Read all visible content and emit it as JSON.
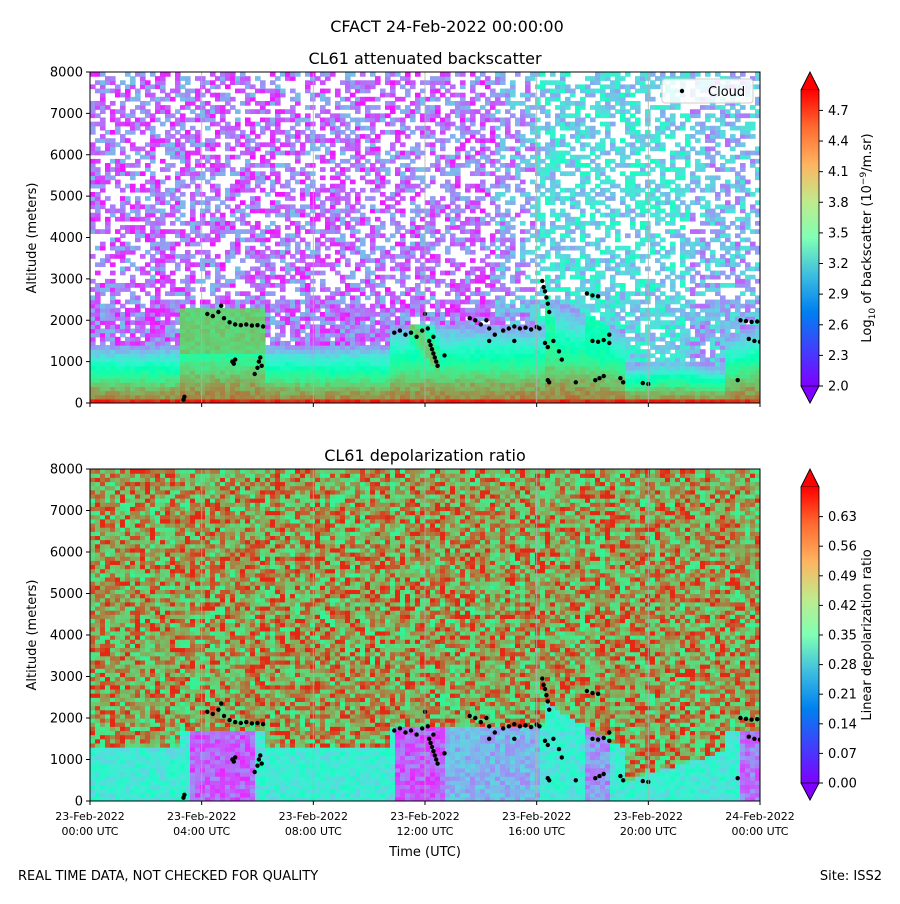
{
  "suptitle": "CFACT 24-Feb-2022 00:00:00",
  "footer_left": "REAL TIME DATA, NOT CHECKED FOR QUALITY",
  "footer_right": "Site: ISS2",
  "chart_data": [
    {
      "type": "heatmap",
      "title": "CL61 attenuated backscatter",
      "xlabel": "",
      "ylabel": "Altitude (meters)",
      "ylim": [
        0,
        8000
      ],
      "yticks": [
        0,
        1000,
        2000,
        3000,
        4000,
        5000,
        6000,
        7000,
        8000
      ],
      "xlim_hours": [
        0,
        24
      ],
      "xtick_hours": [
        0,
        4,
        8,
        12,
        16,
        20,
        24
      ],
      "vertical_grid": true,
      "colormap": "rainbow",
      "colorbar": {
        "label_main": "Log",
        "label_sub": "10",
        "label_rest": " of backscatter (10",
        "label_sup": "−9",
        "label_end": "/m.sr)",
        "vmin": 2.0,
        "vmax": 4.9,
        "ticks": [
          "2.0",
          "2.3",
          "2.6",
          "2.9",
          "3.2",
          "3.5",
          "3.8",
          "4.1",
          "4.4",
          "4.7"
        ],
        "extend": "both"
      },
      "legend": {
        "label": "Cloud",
        "placement": "upper right",
        "marker_color": "#000000"
      }
    },
    {
      "type": "heatmap",
      "title": "CL61 depolarization ratio",
      "xlabel": "Time (UTC)",
      "ylabel": "Altitude (meters)",
      "ylim": [
        0,
        8000
      ],
      "yticks": [
        0,
        1000,
        2000,
        3000,
        4000,
        5000,
        6000,
        7000,
        8000
      ],
      "xlim_hours": [
        0,
        24
      ],
      "xtick_hours": [
        0,
        4,
        8,
        12,
        16,
        20,
        24
      ],
      "xtick_labels": [
        [
          "23-Feb-2022",
          "00:00 UTC"
        ],
        [
          "23-Feb-2022",
          "04:00 UTC"
        ],
        [
          "23-Feb-2022",
          "08:00 UTC"
        ],
        [
          "23-Feb-2022",
          "12:00 UTC"
        ],
        [
          "23-Feb-2022",
          "16:00 UTC"
        ],
        [
          "23-Feb-2022",
          "20:00 UTC"
        ],
        [
          "24-Feb-2022",
          "00:00 UTC"
        ]
      ],
      "vertical_grid": true,
      "colormap": "rainbow",
      "colorbar": {
        "label": "Linear depolarization ratio",
        "vmin": 0.0,
        "vmax": 0.7,
        "ticks": [
          "0.00",
          "0.07",
          "0.14",
          "0.21",
          "0.28",
          "0.35",
          "0.42",
          "0.49",
          "0.56",
          "0.63"
        ],
        "extend": "both"
      }
    }
  ],
  "cloud_points": [
    {
      "t": 3.35,
      "z": 80
    },
    {
      "t": 3.38,
      "z": 150
    },
    {
      "t": 4.2,
      "z": 2150
    },
    {
      "t": 4.4,
      "z": 2100
    },
    {
      "t": 4.6,
      "z": 2200
    },
    {
      "t": 4.7,
      "z": 2350
    },
    {
      "t": 4.8,
      "z": 2050
    },
    {
      "t": 5.0,
      "z": 1950
    },
    {
      "t": 5.2,
      "z": 1900
    },
    {
      "t": 5.4,
      "z": 1880
    },
    {
      "t": 5.6,
      "z": 1900
    },
    {
      "t": 5.8,
      "z": 1870
    },
    {
      "t": 6.0,
      "z": 1880
    },
    {
      "t": 6.2,
      "z": 1850
    },
    {
      "t": 5.1,
      "z": 1000
    },
    {
      "t": 5.15,
      "z": 950
    },
    {
      "t": 5.2,
      "z": 1050
    },
    {
      "t": 5.9,
      "z": 700
    },
    {
      "t": 6.0,
      "z": 850
    },
    {
      "t": 6.05,
      "z": 1000
    },
    {
      "t": 6.1,
      "z": 1100
    },
    {
      "t": 6.15,
      "z": 900
    },
    {
      "t": 10.9,
      "z": 1700
    },
    {
      "t": 11.1,
      "z": 1750
    },
    {
      "t": 11.3,
      "z": 1650
    },
    {
      "t": 11.5,
      "z": 1700
    },
    {
      "t": 11.7,
      "z": 1600
    },
    {
      "t": 11.9,
      "z": 1750
    },
    {
      "t": 12.0,
      "z": 2150
    },
    {
      "t": 12.1,
      "z": 1800
    },
    {
      "t": 12.15,
      "z": 1500
    },
    {
      "t": 12.2,
      "z": 1400
    },
    {
      "t": 12.25,
      "z": 1300
    },
    {
      "t": 12.3,
      "z": 1200
    },
    {
      "t": 12.35,
      "z": 1100
    },
    {
      "t": 12.4,
      "z": 1000
    },
    {
      "t": 12.45,
      "z": 900
    },
    {
      "t": 12.3,
      "z": 1600
    },
    {
      "t": 12.7,
      "z": 1150
    },
    {
      "t": 13.6,
      "z": 2050
    },
    {
      "t": 13.8,
      "z": 2000
    },
    {
      "t": 14.0,
      "z": 1900
    },
    {
      "t": 14.2,
      "z": 2000
    },
    {
      "t": 14.3,
      "z": 1800
    },
    {
      "t": 14.5,
      "z": 1650
    },
    {
      "t": 14.8,
      "z": 1750
    },
    {
      "t": 15.0,
      "z": 1800
    },
    {
      "t": 15.2,
      "z": 1850
    },
    {
      "t": 15.4,
      "z": 1800
    },
    {
      "t": 15.6,
      "z": 1820
    },
    {
      "t": 15.8,
      "z": 1780
    },
    {
      "t": 16.0,
      "z": 1840
    },
    {
      "t": 16.1,
      "z": 1800
    },
    {
      "t": 14.3,
      "z": 1500
    },
    {
      "t": 15.2,
      "z": 1500
    },
    {
      "t": 16.2,
      "z": 2950
    },
    {
      "t": 16.25,
      "z": 2800
    },
    {
      "t": 16.3,
      "z": 2700
    },
    {
      "t": 16.35,
      "z": 2550
    },
    {
      "t": 16.4,
      "z": 2400
    },
    {
      "t": 16.45,
      "z": 2200
    },
    {
      "t": 16.3,
      "z": 1450
    },
    {
      "t": 16.4,
      "z": 1350
    },
    {
      "t": 16.6,
      "z": 1500
    },
    {
      "t": 16.8,
      "z": 1250
    },
    {
      "t": 16.9,
      "z": 1050
    },
    {
      "t": 16.4,
      "z": 550
    },
    {
      "t": 16.45,
      "z": 500
    },
    {
      "t": 17.4,
      "z": 500
    },
    {
      "t": 17.8,
      "z": 2650
    },
    {
      "t": 18.0,
      "z": 2600
    },
    {
      "t": 18.2,
      "z": 2580
    },
    {
      "t": 18.0,
      "z": 1500
    },
    {
      "t": 18.2,
      "z": 1480
    },
    {
      "t": 18.4,
      "z": 1520
    },
    {
      "t": 18.6,
      "z": 1450
    },
    {
      "t": 18.6,
      "z": 1650
    },
    {
      "t": 18.1,
      "z": 550
    },
    {
      "t": 18.25,
      "z": 600
    },
    {
      "t": 18.4,
      "z": 650
    },
    {
      "t": 19.0,
      "z": 600
    },
    {
      "t": 19.1,
      "z": 500
    },
    {
      "t": 19.8,
      "z": 480
    },
    {
      "t": 20.0,
      "z": 460
    },
    {
      "t": 23.2,
      "z": 550
    },
    {
      "t": 23.3,
      "z": 2000
    },
    {
      "t": 23.5,
      "z": 1980
    },
    {
      "t": 23.7,
      "z": 1960
    },
    {
      "t": 23.9,
      "z": 1970
    },
    {
      "t": 23.6,
      "z": 1550
    },
    {
      "t": 23.8,
      "z": 1500
    },
    {
      "t": 24.0,
      "z": 1480
    }
  ]
}
